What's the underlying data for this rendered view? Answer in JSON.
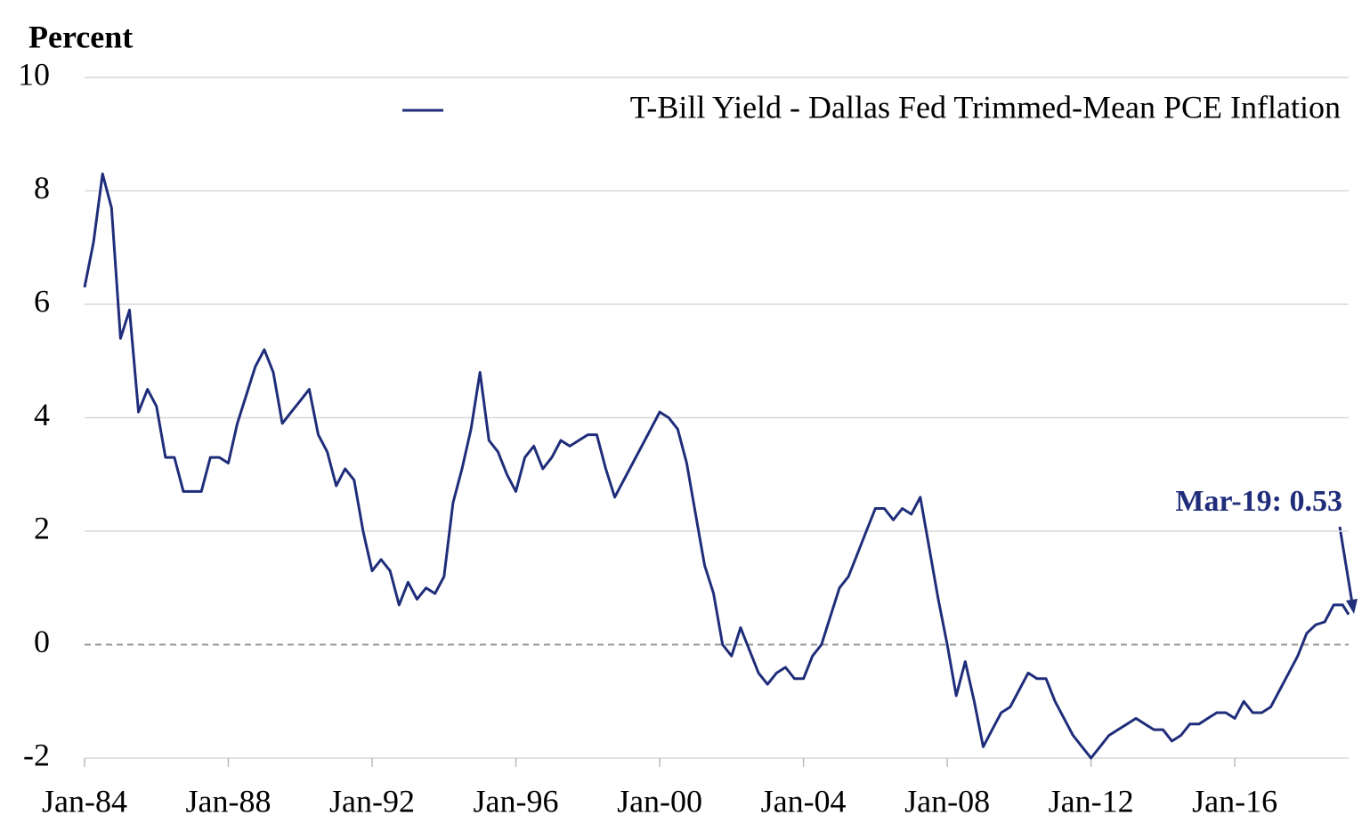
{
  "chart_data": {
    "type": "line",
    "y_label": "Percent",
    "annotation": "Mar-19: 0.53",
    "x": [
      "1984-01",
      "1984-04",
      "1984-07",
      "1984-10",
      "1985-01",
      "1985-04",
      "1985-07",
      "1985-10",
      "1986-01",
      "1986-04",
      "1986-07",
      "1986-10",
      "1987-01",
      "1987-04",
      "1987-07",
      "1987-10",
      "1988-01",
      "1988-04",
      "1988-07",
      "1988-10",
      "1989-01",
      "1989-04",
      "1989-07",
      "1989-10",
      "1990-01",
      "1990-04",
      "1990-07",
      "1990-10",
      "1991-01",
      "1991-04",
      "1991-07",
      "1991-10",
      "1992-01",
      "1992-04",
      "1992-07",
      "1992-10",
      "1993-01",
      "1993-04",
      "1993-07",
      "1993-10",
      "1994-01",
      "1994-04",
      "1994-07",
      "1994-10",
      "1995-01",
      "1995-04",
      "1995-07",
      "1995-10",
      "1996-01",
      "1996-04",
      "1996-07",
      "1996-10",
      "1997-01",
      "1997-04",
      "1997-07",
      "1997-10",
      "1998-01",
      "1998-04",
      "1998-07",
      "1998-10",
      "1999-01",
      "1999-04",
      "1999-07",
      "1999-10",
      "2000-01",
      "2000-04",
      "2000-07",
      "2000-10",
      "2001-01",
      "2001-04",
      "2001-07",
      "2001-10",
      "2002-01",
      "2002-04",
      "2002-07",
      "2002-10",
      "2003-01",
      "2003-04",
      "2003-07",
      "2003-10",
      "2004-01",
      "2004-04",
      "2004-07",
      "2004-10",
      "2005-01",
      "2005-04",
      "2005-07",
      "2005-10",
      "2006-01",
      "2006-04",
      "2006-07",
      "2006-10",
      "2007-01",
      "2007-04",
      "2007-07",
      "2007-10",
      "2008-01",
      "2008-04",
      "2008-07",
      "2008-10",
      "2009-01",
      "2009-04",
      "2009-07",
      "2009-10",
      "2010-01",
      "2010-04",
      "2010-07",
      "2010-10",
      "2011-01",
      "2011-04",
      "2011-07",
      "2011-10",
      "2012-01",
      "2012-04",
      "2012-07",
      "2012-10",
      "2013-01",
      "2013-04",
      "2013-07",
      "2013-10",
      "2014-01",
      "2014-04",
      "2014-07",
      "2014-10",
      "2015-01",
      "2015-04",
      "2015-07",
      "2015-10",
      "2016-01",
      "2016-04",
      "2016-07",
      "2016-10",
      "2017-01",
      "2017-04",
      "2017-07",
      "2017-10",
      "2018-01",
      "2018-04",
      "2018-07",
      "2018-10",
      "2019-01",
      "2019-03"
    ],
    "series": [
      {
        "name": "T-Bill Yield - Dallas Fed Trimmed-Mean PCE Inflation",
        "color": "#1f2d7a",
        "values": [
          6.3,
          7.1,
          8.3,
          7.7,
          5.4,
          5.9,
          4.1,
          4.5,
          4.2,
          3.3,
          3.3,
          2.7,
          2.7,
          2.7,
          3.3,
          3.3,
          3.2,
          3.9,
          4.4,
          4.9,
          5.2,
          4.8,
          3.9,
          4.1,
          4.3,
          4.5,
          3.7,
          3.4,
          2.8,
          3.1,
          2.9,
          2.0,
          1.3,
          1.5,
          1.3,
          0.7,
          1.1,
          0.8,
          1.0,
          0.9,
          1.2,
          2.5,
          3.1,
          3.8,
          4.8,
          3.6,
          3.4,
          3.0,
          2.7,
          3.3,
          3.5,
          3.1,
          3.3,
          3.6,
          3.5,
          3.6,
          3.7,
          3.7,
          3.1,
          2.6,
          2.9,
          3.2,
          3.5,
          3.8,
          4.1,
          4.0,
          3.8,
          3.2,
          2.3,
          1.4,
          0.9,
          0.0,
          -0.2,
          0.3,
          -0.1,
          -0.5,
          -0.7,
          -0.5,
          -0.4,
          -0.6,
          -0.6,
          -0.2,
          0.0,
          0.5,
          1.0,
          1.2,
          1.6,
          2.0,
          2.4,
          2.4,
          2.2,
          2.4,
          2.3,
          2.6,
          1.7,
          0.8,
          0.0,
          -0.9,
          -0.3,
          -1.0,
          -1.8,
          -1.5,
          -1.2,
          -1.1,
          -0.8,
          -0.5,
          -0.6,
          -0.6,
          -1.0,
          -1.3,
          -1.6,
          -1.8,
          -2.0,
          -1.8,
          -1.6,
          -1.5,
          -1.4,
          -1.3,
          -1.4,
          -1.5,
          -1.5,
          -1.7,
          -1.6,
          -1.4,
          -1.4,
          -1.3,
          -1.2,
          -1.2,
          -1.3,
          -1.0,
          -1.2,
          -1.2,
          -1.1,
          -0.8,
          -0.5,
          -0.2,
          0.2,
          0.35,
          0.4,
          0.7,
          0.7,
          0.53
        ]
      }
    ],
    "xlim": [
      "1984-01",
      "2019-03"
    ],
    "xticks": [
      {
        "value": "1984-01",
        "label": "Jan-84"
      },
      {
        "value": "1988-01",
        "label": "Jan-88"
      },
      {
        "value": "1992-01",
        "label": "Jan-92"
      },
      {
        "value": "1996-01",
        "label": "Jan-96"
      },
      {
        "value": "2000-01",
        "label": "Jan-00"
      },
      {
        "value": "2004-01",
        "label": "Jan-04"
      },
      {
        "value": "2008-01",
        "label": "Jan-08"
      },
      {
        "value": "2012-01",
        "label": "Jan-12"
      },
      {
        "value": "2016-01",
        "label": "Jan-16"
      }
    ],
    "ylim": [
      -2,
      10
    ],
    "yticks": [
      -2,
      0,
      2,
      4,
      6,
      8,
      10
    ],
    "grid": true,
    "legend": "top-right"
  }
}
